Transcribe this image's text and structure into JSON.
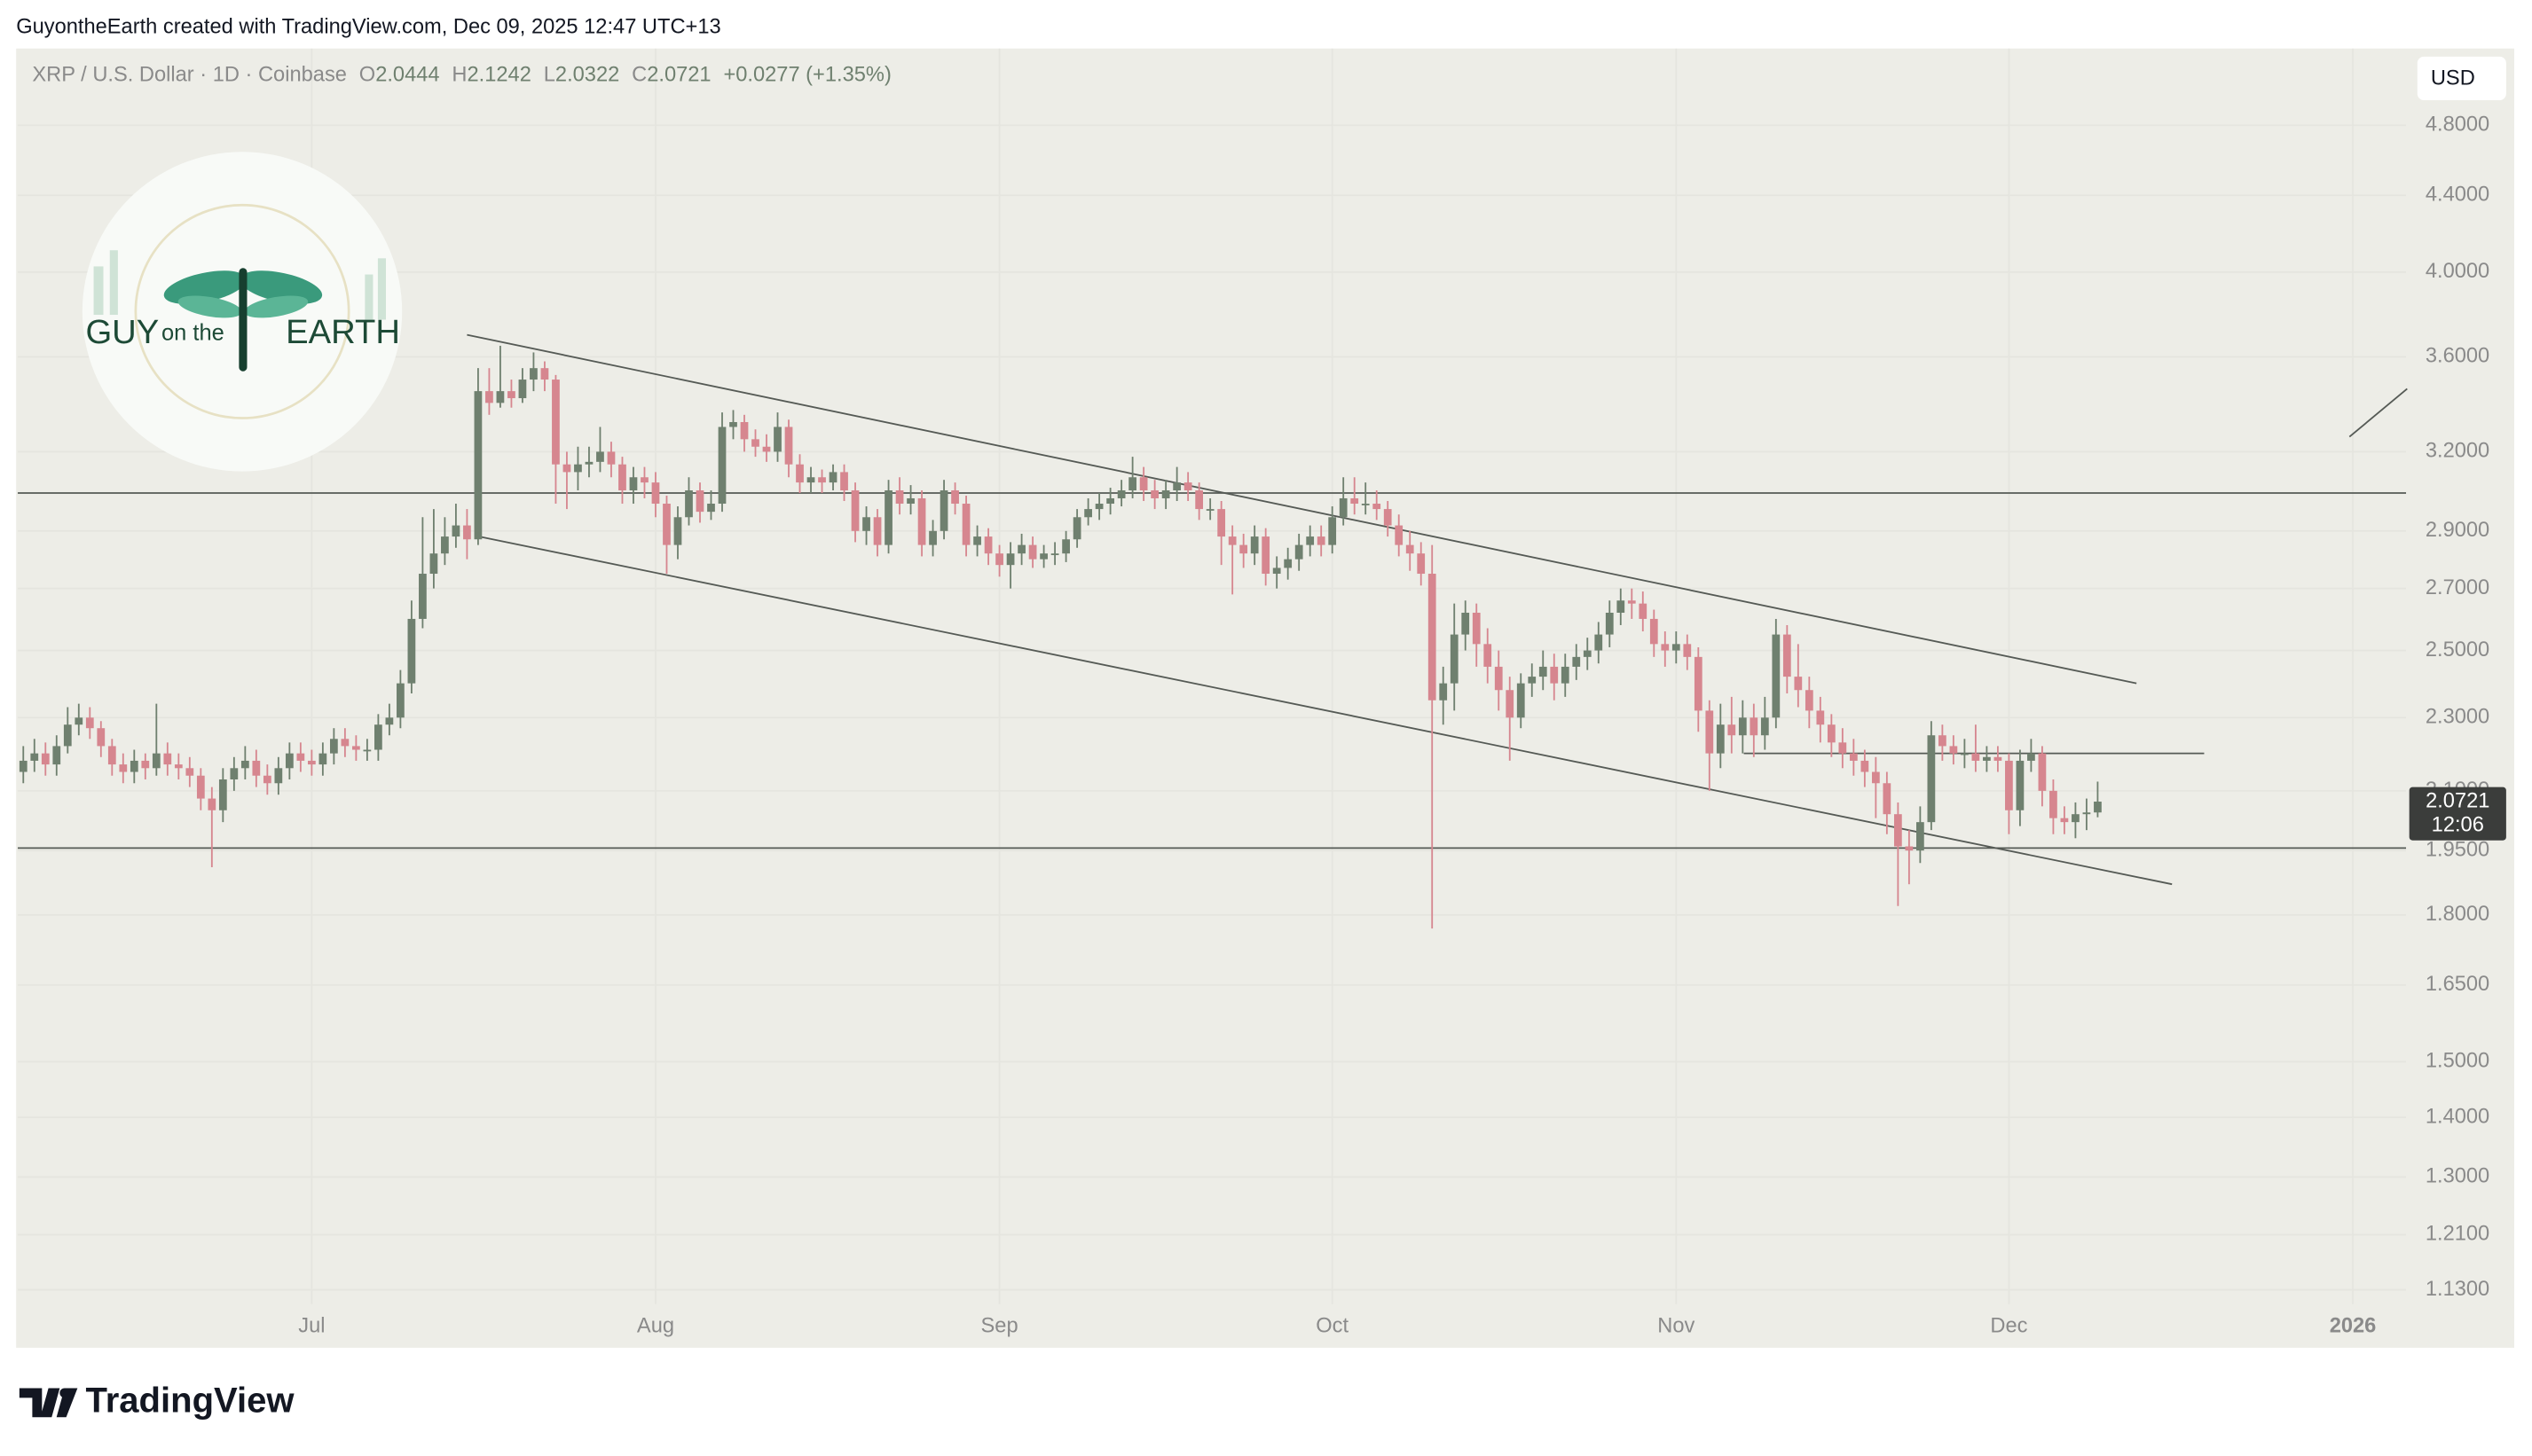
{
  "watermark": "GuyontheEarth created with TradingView.com, Dec 09, 2025 12:47 UTC+13",
  "header": {
    "symbol": "XRP / U.S. Dollar · 1D · Coinbase",
    "o": "O",
    "h": "H",
    "l": "L",
    "c": "C",
    "change": "+0.0277 (+1.35%)"
  },
  "currency": "USD",
  "price_tag": {
    "countdown": "12:06"
  },
  "logo": {
    "word1": "GUY",
    "word2": "on the",
    "word3": "EARTH"
  },
  "footer": {
    "brand": "TradingView"
  },
  "chart_data": {
    "type": "candlestick",
    "log": true,
    "grid": true,
    "up_color": "#6f806f",
    "down_color": "#d6868f",
    "line_color": "#555a55",
    "xlim": [
      -26.5,
      188.8
    ],
    "ylim": [
      1.11,
      5.28
    ],
    "xticks": [
      {
        "value": 0,
        "label": "Jul"
      },
      {
        "value": 31,
        "label": "Aug"
      },
      {
        "value": 62,
        "label": "Sep"
      },
      {
        "value": 92,
        "label": "Oct"
      },
      {
        "value": 123,
        "label": "Nov"
      },
      {
        "value": 153,
        "label": "Dec"
      },
      {
        "value": 184,
        "label": "2026"
      }
    ],
    "yticks": [
      {
        "value": 1.13,
        "label": "1.1300"
      },
      {
        "value": 1.21,
        "label": "1.2100"
      },
      {
        "value": 1.3,
        "label": "1.3000"
      },
      {
        "value": 1.4,
        "label": "1.4000"
      },
      {
        "value": 1.5,
        "label": "1.5000"
      },
      {
        "value": 1.65,
        "label": "1.6500"
      },
      {
        "value": 1.8,
        "label": "1.8000"
      },
      {
        "value": 1.95,
        "label": "1.9500"
      },
      {
        "value": 2.1,
        "label": "2.1000"
      },
      {
        "value": 2.3,
        "label": "2.3000"
      },
      {
        "value": 2.5,
        "label": "2.5000"
      },
      {
        "value": 2.7,
        "label": "2.7000"
      },
      {
        "value": 2.9,
        "label": "2.9000"
      },
      {
        "value": 3.2,
        "label": "3.2000"
      },
      {
        "value": 3.6,
        "label": "3.6000"
      },
      {
        "value": 4.0,
        "label": "4.0000"
      },
      {
        "value": 4.4,
        "label": "4.4000"
      },
      {
        "value": 4.8,
        "label": "4.8000"
      }
    ],
    "x": [
      -26,
      -25,
      -24,
      -23,
      -22,
      -21,
      -20,
      -19,
      -18,
      -17,
      -16,
      -15,
      -14,
      -13,
      -12,
      -11,
      -10,
      -9,
      -8,
      -7,
      -6,
      -5,
      -4,
      -3,
      -2,
      -1,
      0,
      1,
      2,
      3,
      4,
      5,
      6,
      7,
      8,
      9,
      10,
      11,
      12,
      13,
      14,
      15,
      16,
      17,
      18,
      19,
      20,
      21,
      22,
      23,
      24,
      25,
      26,
      27,
      28,
      29,
      30,
      31,
      32,
      33,
      34,
      35,
      36,
      37,
      38,
      39,
      40,
      41,
      42,
      43,
      44,
      45,
      46,
      47,
      48,
      49,
      50,
      51,
      52,
      53,
      54,
      55,
      56,
      57,
      58,
      59,
      60,
      61,
      62,
      63,
      64,
      65,
      66,
      67,
      68,
      69,
      70,
      71,
      72,
      73,
      74,
      75,
      76,
      77,
      78,
      79,
      80,
      81,
      82,
      83,
      84,
      85,
      86,
      87,
      88,
      89,
      90,
      91,
      92,
      93,
      94,
      95,
      96,
      97,
      98,
      99,
      100,
      101,
      102,
      103,
      104,
      105,
      106,
      107,
      108,
      109,
      110,
      111,
      112,
      113,
      114,
      115,
      116,
      117,
      118,
      119,
      120,
      121,
      122,
      123,
      124,
      125,
      126,
      127,
      128,
      129,
      130,
      131,
      132,
      133,
      134,
      135,
      136,
      137,
      138,
      139,
      140,
      141,
      142,
      143,
      144,
      145,
      146,
      147,
      148,
      149,
      150,
      151,
      152,
      153,
      154,
      155,
      156,
      157,
      158,
      159,
      160,
      161
    ],
    "open": [
      2.15,
      2.18,
      2.2,
      2.17,
      2.22,
      2.28,
      2.3,
      2.27,
      2.22,
      2.17,
      2.15,
      2.18,
      2.16,
      2.2,
      2.17,
      2.16,
      2.14,
      2.08,
      2.05,
      2.13,
      2.16,
      2.18,
      2.14,
      2.12,
      2.16,
      2.2,
      2.18,
      2.17,
      2.2,
      2.24,
      2.22,
      2.21,
      2.21,
      2.28,
      2.3,
      2.4,
      2.6,
      2.75,
      2.82,
      2.88,
      2.92,
      2.87,
      3.45,
      3.4,
      3.45,
      3.42,
      3.5,
      3.55,
      3.5,
      3.15,
      3.12,
      3.15,
      3.16,
      3.2,
      3.15,
      3.05,
      3.1,
      3.08,
      3.0,
      2.85,
      2.95,
      3.05,
      2.97,
      3.0,
      3.3,
      3.32,
      3.25,
      3.22,
      3.2,
      3.3,
      3.15,
      3.08,
      3.1,
      3.08,
      3.12,
      3.05,
      2.9,
      2.95,
      2.85,
      3.05,
      3.0,
      3.02,
      2.85,
      2.9,
      3.05,
      3.0,
      2.85,
      2.88,
      2.82,
      2.78,
      2.82,
      2.85,
      2.8,
      2.82,
      2.82,
      2.87,
      2.95,
      2.98,
      3.0,
      3.02,
      3.05,
      3.1,
      3.05,
      3.02,
      3.05,
      3.08,
      3.05,
      2.98,
      2.98,
      2.88,
      2.85,
      2.82,
      2.88,
      2.75,
      2.77,
      2.8,
      2.85,
      2.88,
      2.85,
      2.95,
      3.02,
      3.0,
      3.0,
      2.98,
      2.92,
      2.85,
      2.82,
      2.75,
      2.35,
      2.4,
      2.55,
      2.62,
      2.52,
      2.45,
      2.38,
      2.3,
      2.4,
      2.42,
      2.45,
      2.4,
      2.45,
      2.48,
      2.5,
      2.55,
      2.62,
      2.66,
      2.65,
      2.6,
      2.52,
      2.5,
      2.52,
      2.48,
      2.32,
      2.2,
      2.28,
      2.25,
      2.3,
      2.25,
      2.3,
      2.55,
      2.42,
      2.38,
      2.32,
      2.28,
      2.23,
      2.2,
      2.18,
      2.15,
      2.12,
      2.04,
      1.96,
      1.95,
      2.02,
      2.25,
      2.22,
      2.2,
      2.2,
      2.18,
      2.19,
      2.18,
      2.05,
      2.18,
      2.2,
      2.1,
      2.03,
      2.02,
      2.04,
      2.0444
    ],
    "high": [
      2.22,
      2.24,
      2.23,
      2.25,
      2.33,
      2.34,
      2.33,
      2.29,
      2.24,
      2.2,
      2.21,
      2.2,
      2.34,
      2.23,
      2.2,
      2.19,
      2.16,
      2.11,
      2.16,
      2.19,
      2.22,
      2.21,
      2.17,
      2.19,
      2.23,
      2.23,
      2.21,
      2.23,
      2.27,
      2.27,
      2.25,
      2.24,
      2.31,
      2.34,
      2.44,
      2.66,
      2.95,
      2.98,
      2.95,
      3.0,
      2.98,
      3.55,
      3.55,
      3.65,
      3.5,
      3.55,
      3.62,
      3.58,
      3.52,
      3.2,
      3.22,
      3.22,
      3.3,
      3.24,
      3.18,
      3.14,
      3.14,
      3.12,
      3.03,
      2.99,
      3.1,
      3.08,
      3.05,
      3.36,
      3.37,
      3.35,
      3.29,
      3.27,
      3.36,
      3.33,
      3.19,
      3.14,
      3.13,
      3.15,
      3.15,
      3.08,
      2.99,
      2.98,
      3.09,
      3.1,
      3.07,
      3.05,
      2.94,
      3.09,
      3.08,
      3.03,
      2.92,
      2.91,
      2.85,
      2.86,
      2.89,
      2.88,
      2.85,
      2.86,
      2.9,
      2.98,
      3.02,
      3.04,
      3.06,
      3.09,
      3.18,
      3.14,
      3.09,
      3.09,
      3.14,
      3.12,
      3.08,
      3.02,
      3.01,
      2.92,
      2.89,
      2.92,
      2.91,
      2.81,
      2.84,
      2.89,
      2.92,
      2.92,
      2.99,
      3.1,
      3.1,
      3.08,
      3.05,
      3.01,
      2.96,
      2.9,
      2.86,
      2.85,
      2.45,
      2.65,
      2.66,
      2.65,
      2.57,
      2.5,
      2.42,
      2.43,
      2.46,
      2.5,
      2.49,
      2.49,
      2.52,
      2.54,
      2.59,
      2.66,
      2.7,
      2.7,
      2.69,
      2.63,
      2.56,
      2.56,
      2.55,
      2.51,
      2.35,
      2.34,
      2.36,
      2.35,
      2.34,
      2.36,
      2.6,
      2.58,
      2.52,
      2.42,
      2.36,
      2.31,
      2.27,
      2.24,
      2.21,
      2.19,
      2.15,
      2.07,
      2.0,
      2.06,
      2.29,
      2.28,
      2.25,
      2.24,
      2.28,
      2.22,
      2.22,
      2.2,
      2.21,
      2.24,
      2.22,
      2.13,
      2.06,
      2.07,
      2.08,
      2.1242
    ],
    "low": [
      2.12,
      2.15,
      2.14,
      2.14,
      2.2,
      2.25,
      2.24,
      2.19,
      2.14,
      2.12,
      2.12,
      2.13,
      2.14,
      2.14,
      2.13,
      2.11,
      2.05,
      1.91,
      2.02,
      2.1,
      2.13,
      2.11,
      2.09,
      2.09,
      2.13,
      2.15,
      2.14,
      2.14,
      2.17,
      2.19,
      2.18,
      2.18,
      2.18,
      2.25,
      2.27,
      2.37,
      2.57,
      2.7,
      2.78,
      2.84,
      2.8,
      2.85,
      3.35,
      3.38,
      3.38,
      3.4,
      3.45,
      3.45,
      3.0,
      2.98,
      3.05,
      3.1,
      3.12,
      3.1,
      3.0,
      3.0,
      3.02,
      2.95,
      2.75,
      2.8,
      2.92,
      2.93,
      2.94,
      2.97,
      3.25,
      3.2,
      3.18,
      3.16,
      3.16,
      3.1,
      3.04,
      3.04,
      3.04,
      3.05,
      3.01,
      2.86,
      2.85,
      2.81,
      2.82,
      2.96,
      2.96,
      2.81,
      2.81,
      2.87,
      2.96,
      2.81,
      2.81,
      2.78,
      2.74,
      2.7,
      2.78,
      2.77,
      2.77,
      2.78,
      2.79,
      2.84,
      2.92,
      2.94,
      2.96,
      2.99,
      3.02,
      3.01,
      2.98,
      2.98,
      3.01,
      3.01,
      2.94,
      2.94,
      2.78,
      2.68,
      2.77,
      2.78,
      2.71,
      2.7,
      2.73,
      2.76,
      2.81,
      2.81,
      2.82,
      2.92,
      2.96,
      2.96,
      2.94,
      2.88,
      2.81,
      2.76,
      2.71,
      1.77,
      2.28,
      2.32,
      2.5,
      2.45,
      2.4,
      2.32,
      2.18,
      2.27,
      2.36,
      2.38,
      2.35,
      2.36,
      2.41,
      2.44,
      2.46,
      2.51,
      2.58,
      2.6,
      2.56,
      2.48,
      2.45,
      2.46,
      2.44,
      2.26,
      2.1,
      2.16,
      2.2,
      2.2,
      2.19,
      2.21,
      2.27,
      2.37,
      2.33,
      2.27,
      2.23,
      2.19,
      2.16,
      2.14,
      2.11,
      2.03,
      1.99,
      1.82,
      1.87,
      1.92,
      2.0,
      2.18,
      2.17,
      2.16,
      2.15,
      2.15,
      2.15,
      1.99,
      2.01,
      2.15,
      2.06,
      1.99,
      1.99,
      1.98,
      2.0,
      2.0322
    ],
    "close": [
      2.18,
      2.2,
      2.17,
      2.22,
      2.28,
      2.3,
      2.27,
      2.22,
      2.17,
      2.15,
      2.18,
      2.16,
      2.2,
      2.17,
      2.16,
      2.14,
      2.08,
      2.05,
      2.13,
      2.16,
      2.18,
      2.14,
      2.12,
      2.16,
      2.2,
      2.18,
      2.17,
      2.2,
      2.24,
      2.22,
      2.21,
      2.21,
      2.28,
      2.3,
      2.4,
      2.6,
      2.75,
      2.82,
      2.88,
      2.92,
      2.87,
      3.45,
      3.4,
      3.45,
      3.42,
      3.5,
      3.55,
      3.5,
      3.15,
      3.12,
      3.15,
      3.16,
      3.2,
      3.15,
      3.05,
      3.1,
      3.08,
      3.0,
      2.85,
      2.95,
      3.05,
      2.97,
      3.0,
      3.3,
      3.32,
      3.25,
      3.22,
      3.2,
      3.3,
      3.15,
      3.08,
      3.1,
      3.08,
      3.12,
      3.05,
      2.9,
      2.95,
      2.85,
      3.05,
      3.0,
      3.02,
      2.85,
      2.9,
      3.05,
      3.0,
      2.85,
      2.88,
      2.82,
      2.78,
      2.82,
      2.85,
      2.8,
      2.82,
      2.82,
      2.87,
      2.95,
      2.98,
      3.0,
      3.02,
      3.05,
      3.1,
      3.05,
      3.02,
      3.05,
      3.08,
      3.05,
      2.98,
      2.98,
      2.88,
      2.85,
      2.82,
      2.88,
      2.75,
      2.77,
      2.8,
      2.85,
      2.88,
      2.85,
      2.95,
      3.02,
      3.0,
      3.0,
      2.98,
      2.92,
      2.85,
      2.82,
      2.75,
      2.35,
      2.4,
      2.55,
      2.62,
      2.52,
      2.45,
      2.38,
      2.3,
      2.4,
      2.42,
      2.45,
      2.4,
      2.45,
      2.48,
      2.5,
      2.55,
      2.62,
      2.66,
      2.65,
      2.6,
      2.52,
      2.5,
      2.52,
      2.48,
      2.32,
      2.2,
      2.28,
      2.25,
      2.3,
      2.25,
      2.3,
      2.55,
      2.42,
      2.38,
      2.32,
      2.28,
      2.23,
      2.2,
      2.18,
      2.15,
      2.12,
      2.04,
      1.96,
      1.95,
      2.02,
      2.25,
      2.22,
      2.2,
      2.2,
      2.18,
      2.19,
      2.18,
      2.05,
      2.18,
      2.2,
      2.1,
      2.03,
      2.02,
      2.04,
      2.0444,
      2.0721
    ],
    "hlines": [
      3.04,
      1.956
    ],
    "segments": [
      {
        "x": [
          14.0,
          164.5
        ],
        "y": [
          3.7,
          2.4
        ]
      },
      {
        "x": [
          15.1,
          167.7
        ],
        "y": [
          2.88,
          1.87
        ]
      },
      {
        "x": [
          129.1,
          170.6
        ],
        "y": [
          2.2,
          2.2
        ]
      },
      {
        "x": [
          183.7,
          188.9
        ],
        "y": [
          3.26,
          3.46
        ]
      }
    ]
  }
}
